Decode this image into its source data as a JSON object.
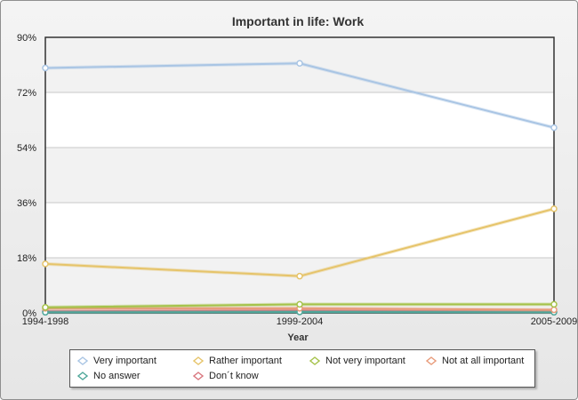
{
  "chart_data": {
    "type": "line",
    "title": "Important in life: Work",
    "xlabel": "Year",
    "ylabel": "",
    "categories": [
      "1994-1998",
      "1999-2004",
      "2005-2009"
    ],
    "ylim": [
      0,
      90
    ],
    "yticks": [
      0,
      18,
      36,
      54,
      72,
      90
    ],
    "ytick_labels": [
      "0%",
      "18%",
      "36%",
      "54%",
      "72%",
      "90%"
    ],
    "grid": "alternating horizontal bands",
    "legend_position": "bottom",
    "series": [
      {
        "name": "Very important",
        "color": "#a9c5e4",
        "values": [
          80,
          81.5,
          60.5
        ]
      },
      {
        "name": "Rather important",
        "color": "#e6c46a",
        "values": [
          16,
          12,
          34
        ]
      },
      {
        "name": "Not very important",
        "color": "#a5c24a",
        "values": [
          1.8,
          2.8,
          2.8
        ]
      },
      {
        "name": "Not at all important",
        "color": "#e89b7a",
        "values": [
          1.5,
          1.5,
          1.0
        ]
      },
      {
        "name": "No answer",
        "color": "#4fa79a",
        "values": [
          0.2,
          0.3,
          0.2
        ]
      },
      {
        "name": "Don´t know",
        "color": "#d9777f",
        "values": [
          0.5,
          0.8,
          0.4
        ]
      }
    ]
  }
}
